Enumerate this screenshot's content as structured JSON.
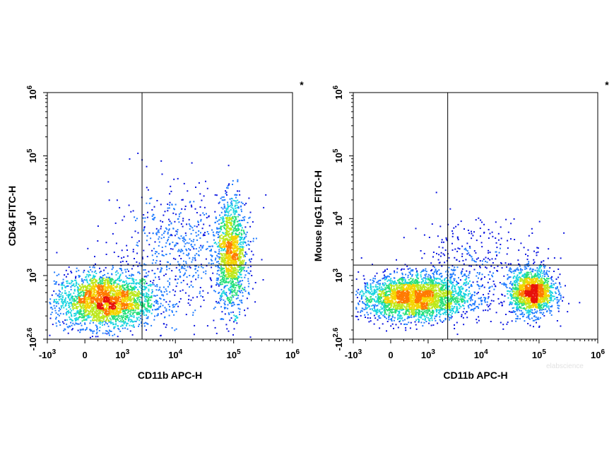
{
  "watermark": "elabscience",
  "density_colors": [
    "#0a14e0",
    "#1e7bff",
    "#19d4e0",
    "#27e07a",
    "#bce81c",
    "#f5d400",
    "#ff7a00",
    "#e8120b"
  ],
  "chart_data": [
    {
      "type": "scatter",
      "subtype": "flow-cytometry-density-dot-plot",
      "title": "",
      "corner_mark": "*",
      "xlabel": "CD11b APC-H",
      "ylabel": "CD64 FITC-H",
      "x_scale": "biexponential",
      "y_scale": "biexponential",
      "xlim": [
        -1000,
        1000000
      ],
      "ylim": [
        -398,
        1000000
      ],
      "x_ticks": [
        {
          "base": "-10",
          "exp": "3"
        },
        {
          "base": "0",
          "exp": ""
        },
        {
          "base": "10",
          "exp": "3"
        },
        {
          "base": "10",
          "exp": "4"
        },
        {
          "base": "10",
          "exp": "5"
        },
        {
          "base": "10",
          "exp": "6"
        }
      ],
      "y_ticks": [
        {
          "base": "-10",
          "exp": "2.6"
        },
        {
          "base": "10",
          "exp": "3"
        },
        {
          "base": "10",
          "exp": "4"
        },
        {
          "base": "10",
          "exp": "5"
        },
        {
          "base": "10",
          "exp": "6"
        }
      ],
      "gates": {
        "x": 2500,
        "y": 1600
      },
      "populations": [
        {
          "name": "",
          "cx": 350,
          "cy": 230,
          "count": 2600,
          "spread_x": 0.1,
          "spread_y": 0.055
        },
        {
          "name": "",
          "cx": 90000,
          "cy": 2500,
          "count": 1300,
          "spread_x": 0.03,
          "spread_y": 0.11
        },
        {
          "name": "",
          "cx": 12000,
          "cy": 3000,
          "count": 650,
          "spread_x": 0.14,
          "spread_y": 0.13
        }
      ],
      "grid": false,
      "legend": "none"
    },
    {
      "type": "scatter",
      "subtype": "flow-cytometry-density-dot-plot",
      "title": "",
      "corner_mark": "*",
      "xlabel": "CD11b APC-H",
      "ylabel": "Mouse IgG1 FITC-H",
      "x_scale": "biexponential",
      "y_scale": "biexponential",
      "xlim": [
        -1000,
        1000000
      ],
      "ylim": [
        -398,
        1000000
      ],
      "x_ticks": [
        {
          "base": "-10",
          "exp": "3"
        },
        {
          "base": "0",
          "exp": ""
        },
        {
          "base": "10",
          "exp": "3"
        },
        {
          "base": "10",
          "exp": "4"
        },
        {
          "base": "10",
          "exp": "5"
        },
        {
          "base": "10",
          "exp": "6"
        }
      ],
      "y_ticks": [
        {
          "base": "-10",
          "exp": "2.6"
        },
        {
          "base": "10",
          "exp": "3"
        },
        {
          "base": "10",
          "exp": "4"
        },
        {
          "base": "10",
          "exp": "5"
        },
        {
          "base": "10",
          "exp": "6"
        }
      ],
      "gates": {
        "x": 2500,
        "y": 1600
      },
      "populations": [
        {
          "name": "",
          "cx": 450,
          "cy": 300,
          "count": 2800,
          "spread_x": 0.11,
          "spread_y": 0.045
        },
        {
          "name": "",
          "cx": 75000,
          "cy": 420,
          "count": 1500,
          "spread_x": 0.045,
          "spread_y": 0.045
        },
        {
          "name": "",
          "cx": 9000,
          "cy": 1500,
          "count": 420,
          "spread_x": 0.14,
          "spread_y": 0.1
        }
      ],
      "grid": false,
      "legend": "none"
    }
  ]
}
